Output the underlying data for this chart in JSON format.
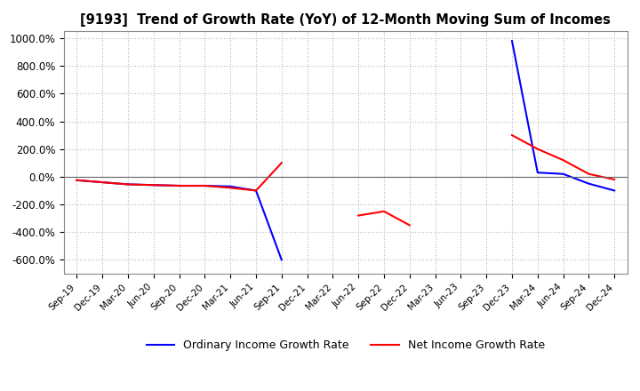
{
  "title": "[9193]  Trend of Growth Rate (YoY) of 12-Month Moving Sum of Incomes",
  "ylim": [
    -700,
    1050
  ],
  "yticks": [
    -600,
    -400,
    -200,
    0,
    200,
    400,
    600,
    800,
    1000
  ],
  "xlabel_dates": [
    "Sep-19",
    "Dec-19",
    "Mar-20",
    "Jun-20",
    "Sep-20",
    "Dec-20",
    "Mar-21",
    "Jun-21",
    "Sep-21",
    "Dec-21",
    "Mar-22",
    "Jun-22",
    "Sep-22",
    "Dec-22",
    "Mar-23",
    "Jun-23",
    "Sep-23",
    "Dec-23",
    "Mar-24",
    "Jun-24",
    "Sep-24",
    "Dec-24"
  ],
  "ordinary_income": [
    -25,
    -40,
    -55,
    -60,
    -65,
    -65,
    -70,
    -100,
    -600,
    null,
    null,
    null,
    null,
    null,
    null,
    null,
    null,
    980,
    30,
    20,
    -50,
    -100
  ],
  "net_income": [
    -25,
    -40,
    -55,
    -60,
    -65,
    -65,
    -80,
    -100,
    100,
    null,
    null,
    -280,
    -250,
    -350,
    null,
    null,
    null,
    300,
    200,
    120,
    20,
    -20
  ],
  "ordinary_color": "#0000FF",
  "net_color": "#FF0000",
  "grid_color": "#BBBBBB",
  "background_color": "#FFFFFF",
  "legend_ordinary": "Ordinary Income Growth Rate",
  "legend_net": "Net Income Growth Rate"
}
